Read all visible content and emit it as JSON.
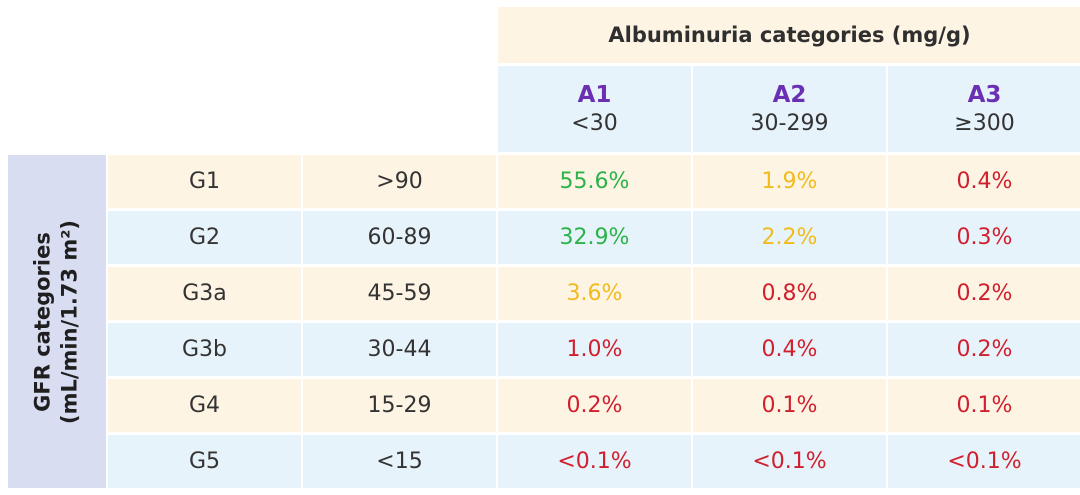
{
  "albuminuria": {
    "title": "Albuminuria categories (mg/g)",
    "columns": [
      {
        "code": "A1",
        "range": "<30"
      },
      {
        "code": "A2",
        "range": "30-299"
      },
      {
        "code": "A3",
        "range": "≥300"
      }
    ]
  },
  "gfr": {
    "title_line1": "GFR categories",
    "title_line2": "(mL/min/1.73 m²)"
  },
  "colors": {
    "green": "#2bb34a",
    "yellow": "#f2bb1d",
    "red": "#d0202e",
    "purple": "#6b2fb3"
  },
  "rows": [
    {
      "stage": "G1",
      "range": ">90",
      "cells": [
        {
          "value": "55.6%",
          "color": "green"
        },
        {
          "value": "1.9%",
          "color": "yellow"
        },
        {
          "value": "0.4%",
          "color": "red"
        }
      ]
    },
    {
      "stage": "G2",
      "range": "60-89",
      "cells": [
        {
          "value": "32.9%",
          "color": "green"
        },
        {
          "value": "2.2%",
          "color": "yellow"
        },
        {
          "value": "0.3%",
          "color": "red"
        }
      ]
    },
    {
      "stage": "G3a",
      "range": "45-59",
      "cells": [
        {
          "value": "3.6%",
          "color": "yellow"
        },
        {
          "value": "0.8%",
          "color": "red"
        },
        {
          "value": "0.2%",
          "color": "red"
        }
      ]
    },
    {
      "stage": "G3b",
      "range": "30-44",
      "cells": [
        {
          "value": "1.0%",
          "color": "red"
        },
        {
          "value": "0.4%",
          "color": "red"
        },
        {
          "value": "0.2%",
          "color": "red"
        }
      ]
    },
    {
      "stage": "G4",
      "range": "15-29",
      "cells": [
        {
          "value": "0.2%",
          "color": "red"
        },
        {
          "value": "0.1%",
          "color": "red"
        },
        {
          "value": "0.1%",
          "color": "red"
        }
      ]
    },
    {
      "stage": "G5",
      "range": "<15",
      "cells": [
        {
          "value": "<0.1%",
          "color": "red"
        },
        {
          "value": "<0.1%",
          "color": "red"
        },
        {
          "value": "<0.1%",
          "color": "red"
        }
      ]
    }
  ]
}
